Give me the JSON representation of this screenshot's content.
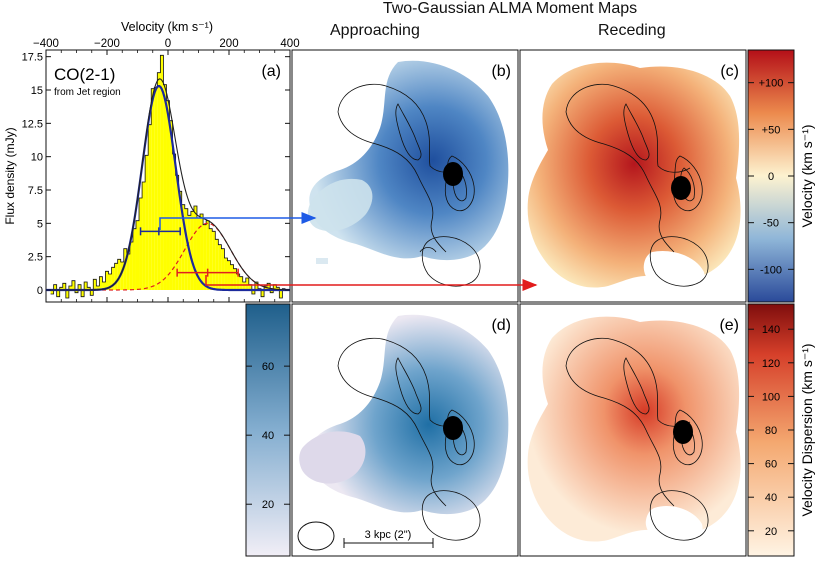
{
  "title": "Two-Gaussian ALMA Moment Maps",
  "columns": {
    "approaching": "Approaching",
    "receding": "Receding"
  },
  "spectrum": {
    "label": "(a)",
    "line_name": "CO(2-1)",
    "region": "from Jet region",
    "colors": {
      "histogram": "#ffff00",
      "outline": "#111111",
      "total_fit": "#222222",
      "approaching_fit": "#1c2a9c",
      "receding_fit": "#e02020"
    }
  },
  "panels": {
    "b": "(b)",
    "c": "(c)",
    "d": "(d)",
    "e": "(e)"
  },
  "colorbars": {
    "velocity": {
      "label": "Velocity (km s⁻¹)",
      "ticks": [
        "+100",
        "+50",
        "0",
        "-50",
        "-100"
      ],
      "range": [
        -135,
        135
      ],
      "colors": [
        "#2a4a9a",
        "#fdf2d0",
        "#b40f18"
      ]
    },
    "dispersion_approaching": {
      "ticks": [
        "60",
        "40",
        "20"
      ],
      "range": [
        5,
        78
      ],
      "colors": [
        "#f1eef6",
        "#1f5f8b"
      ]
    },
    "dispersion_receding": {
      "label": "Velocity Dispersion (km s⁻¹)",
      "ticks": [
        "140",
        "120",
        "100",
        "80",
        "60",
        "40",
        "20"
      ],
      "range": [
        5,
        155
      ],
      "colors": [
        "#fff4e4",
        "#7f0d0d"
      ]
    }
  },
  "scalebar": {
    "label": "3 kpc (2\")"
  },
  "chart_data": [
    {
      "type": "bar",
      "title": "CO(2-1) spectrum from Jet region",
      "xlabel": "Velocity (km s⁻¹)",
      "ylabel": "Flux density (mJy)",
      "xlim": [
        -400,
        400
      ],
      "ylim": [
        -0.9,
        18
      ],
      "x_ticks": [
        -400,
        -200,
        0,
        200,
        400
      ],
      "y_ticks": [
        0,
        2.5,
        5,
        7.5,
        10,
        12.5,
        15,
        17.5
      ],
      "x_tick_labels": [
        "−400",
        "−200",
        "0",
        "200",
        "400"
      ],
      "y_tick_labels": [
        "0",
        "2.5",
        "5",
        "7.5",
        "10",
        "12.5",
        "15",
        "17.5"
      ],
      "series": [
        {
          "name": "approaching component",
          "model": "gaussian",
          "amplitude": 15.3,
          "center": -30,
          "sigma": 55
        },
        {
          "name": "receding component",
          "model": "gaussian",
          "amplitude": 5.0,
          "center": 130,
          "sigma": 75
        },
        {
          "name": "total fit",
          "model": "sum"
        }
      ],
      "error_bars": [
        {
          "name": "approaching",
          "center": -30,
          "low": -90,
          "high": 40,
          "y": 4.4
        },
        {
          "name": "receding",
          "center": 130,
          "low": 30,
          "high": 230,
          "y": 1.3
        }
      ],
      "channels": {
        "velocities": [
          -380,
          -370,
          -360,
          -350,
          -340,
          -330,
          -320,
          -310,
          -300,
          -290,
          -280,
          -270,
          -260,
          -250,
          -240,
          -230,
          -220,
          -210,
          -200,
          -190,
          -180,
          -170,
          -160,
          -150,
          -140,
          -130,
          -120,
          -110,
          -100,
          -90,
          -80,
          -70,
          -60,
          -50,
          -40,
          -30,
          -20,
          -10,
          0,
          10,
          20,
          30,
          40,
          50,
          60,
          70,
          80,
          90,
          100,
          110,
          120,
          130,
          140,
          150,
          160,
          170,
          180,
          190,
          200,
          210,
          220,
          230,
          240,
          250,
          260,
          270,
          280,
          290,
          300,
          310,
          320,
          330,
          340,
          350,
          360,
          370,
          380
        ],
        "flux": [
          -0.3,
          0.4,
          -0.5,
          0.2,
          0.5,
          -0.6,
          0.3,
          0.7,
          -0.2,
          0.4,
          -0.5,
          0.6,
          0.2,
          -0.4,
          0.8,
          0.3,
          1.0,
          0.6,
          1.4,
          1.2,
          1.7,
          2.0,
          2.3,
          2.1,
          3.1,
          2.7,
          3.6,
          4.6,
          5.2,
          6.9,
          8.1,
          10.1,
          12.4,
          15.1,
          15.2,
          16.3,
          17.6,
          15.4,
          14.2,
          12.7,
          10.2,
          8.6,
          7.4,
          6.4,
          6.1,
          5.6,
          5.9,
          6.3,
          5.4,
          5.7,
          4.9,
          5.2,
          4.6,
          4.4,
          3.8,
          3.4,
          3.1,
          2.4,
          2.2,
          1.9,
          1.6,
          1.2,
          1.0,
          0.6,
          0.9,
          0.4,
          -0.3,
          0.6,
          0.1,
          -0.5,
          0.3,
          0.5,
          -0.2,
          0.4,
          0.2,
          -0.6,
          0.1
        ]
      }
    }
  ]
}
